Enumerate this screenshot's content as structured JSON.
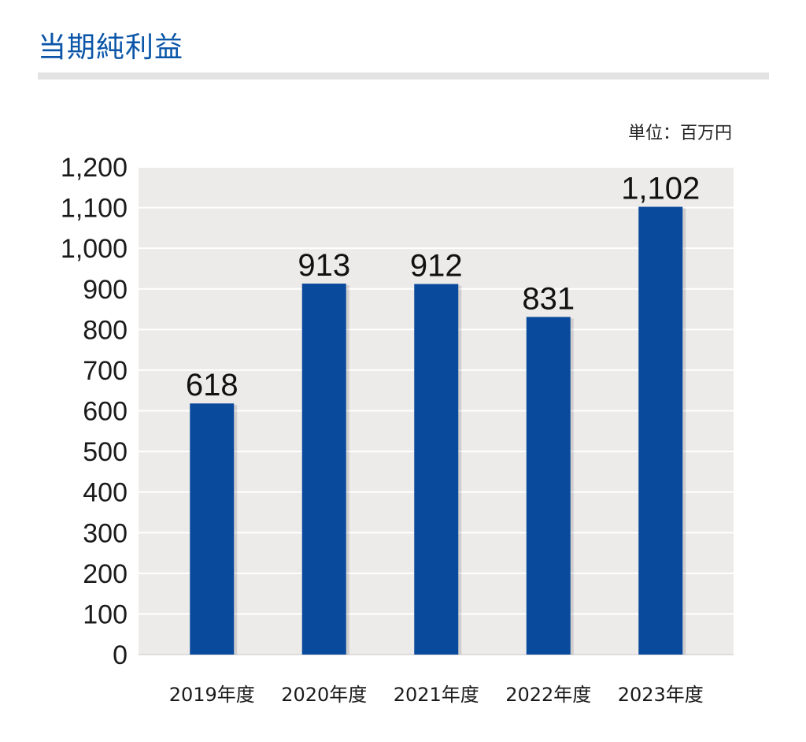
{
  "page": {
    "title": "当期純利益",
    "unit": "単位：百万円",
    "colors": {
      "title": "#0b56a8",
      "bar": "#0a4a9c",
      "plot_background": "#ecebea",
      "grid": "#ffffff",
      "title_rule": "#e3e3e3"
    }
  },
  "chart_data": {
    "type": "bar",
    "title": "当期純利益",
    "unit": "単位：百万円",
    "categories": [
      "2019年度",
      "2020年度",
      "2021年度",
      "2022年度",
      "2023年度"
    ],
    "values": [
      618,
      913,
      912,
      831,
      1102
    ],
    "value_labels": [
      "618",
      "913",
      "912",
      "831",
      "1,102"
    ],
    "yticks": [
      0,
      100,
      200,
      300,
      400,
      500,
      600,
      700,
      800,
      900,
      1000,
      1100,
      1200
    ],
    "ytick_labels": [
      "0",
      "100",
      "200",
      "300",
      "400",
      "500",
      "600",
      "700",
      "800",
      "900",
      "1,000",
      "1,100",
      "1,200"
    ],
    "ylim": [
      0,
      1200
    ],
    "xlabel": "",
    "ylabel": "",
    "grid": true,
    "legend": "none"
  }
}
